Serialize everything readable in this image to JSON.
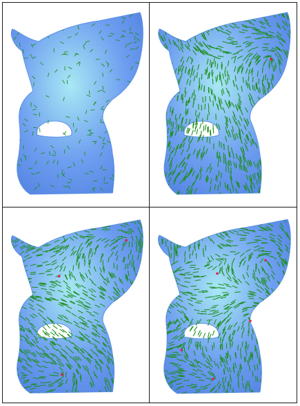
{
  "figure": {
    "panels": [
      {
        "subject": "cat-model",
        "field": "direction-field",
        "singularities": 0,
        "density": "sparse"
      },
      {
        "subject": "cat-model",
        "field": "direction-field",
        "singularities": 1,
        "density": "dense"
      },
      {
        "subject": "cat-model",
        "field": "direction-field",
        "singularities": 3,
        "density": "dense"
      },
      {
        "subject": "cat-model",
        "field": "direction-field",
        "singularities": 5,
        "density": "dense"
      }
    ]
  },
  "colors": {
    "surface": "#6f9ff0",
    "surface_light": "#a8e8f4",
    "surface_dark": "#4f7fe0",
    "stroke": "#1e8f1e",
    "singularity": "#e0204a",
    "border": "#1a1a1a"
  }
}
